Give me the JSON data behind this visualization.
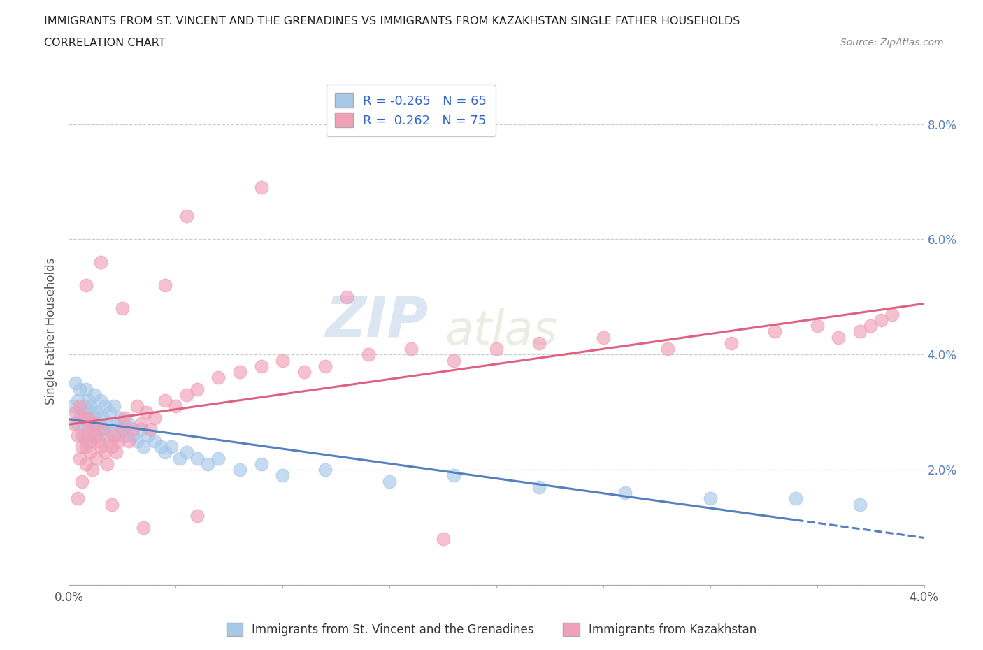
{
  "title_line1": "IMMIGRANTS FROM ST. VINCENT AND THE GRENADINES VS IMMIGRANTS FROM KAZAKHSTAN SINGLE FATHER HOUSEHOLDS",
  "title_line2": "CORRELATION CHART",
  "source_text": "Source: ZipAtlas.com",
  "ylabel": "Single Father Households",
  "xlim": [
    0.0,
    0.04
  ],
  "ylim": [
    0.0,
    0.088
  ],
  "xticks": [
    0.0,
    0.005,
    0.01,
    0.015,
    0.02,
    0.025,
    0.03,
    0.035,
    0.04
  ],
  "xticklabels_show": [
    "0.0%",
    "",
    "",
    "",
    "",
    "",
    "",
    "",
    "4.0%"
  ],
  "yticks": [
    0.0,
    0.02,
    0.04,
    0.06,
    0.08
  ],
  "yticklabels_right": [
    "",
    "2.0%",
    "4.0%",
    "6.0%",
    "8.0%"
  ],
  "watermark_zip": "ZIP",
  "watermark_atlas": "atlas",
  "legend_r1": "R = -0.265",
  "legend_n1": "N = 65",
  "legend_r2": "R =  0.262",
  "legend_n2": "N = 75",
  "color_blue": "#A8C8E8",
  "color_pink": "#F0A0B8",
  "line_color_blue": "#5580C0",
  "line_color_pink": "#E06080",
  "blue_label": "Immigrants from St. Vincent and the Grenadines",
  "pink_label": "Immigrants from Kazakhstan",
  "N_blue": 65,
  "N_pink": 75,
  "R_blue": -0.265,
  "R_pink": 0.262,
  "background_color": "#FFFFFF",
  "grid_color": "#CCCCCC",
  "blue_x_data": [
    0.0002,
    0.0003,
    0.0004,
    0.0004,
    0.0005,
    0.0005,
    0.0006,
    0.0006,
    0.0007,
    0.0007,
    0.0008,
    0.0008,
    0.0008,
    0.0009,
    0.0009,
    0.001,
    0.001,
    0.0011,
    0.0011,
    0.0012,
    0.0012,
    0.0013,
    0.0013,
    0.0014,
    0.0015,
    0.0015,
    0.0016,
    0.0017,
    0.0018,
    0.0018,
    0.0019,
    0.002,
    0.0021,
    0.0022,
    0.0023,
    0.0024,
    0.0025,
    0.0026,
    0.0027,
    0.0028,
    0.003,
    0.0032,
    0.0034,
    0.0035,
    0.0037,
    0.004,
    0.0043,
    0.0045,
    0.0048,
    0.0052,
    0.0055,
    0.006,
    0.0065,
    0.007,
    0.008,
    0.009,
    0.01,
    0.012,
    0.015,
    0.018,
    0.022,
    0.026,
    0.03,
    0.034,
    0.037
  ],
  "blue_y_data": [
    0.031,
    0.035,
    0.028,
    0.032,
    0.029,
    0.034,
    0.03,
    0.026,
    0.031,
    0.028,
    0.034,
    0.03,
    0.025,
    0.029,
    0.032,
    0.028,
    0.031,
    0.027,
    0.03,
    0.029,
    0.033,
    0.026,
    0.03,
    0.028,
    0.032,
    0.027,
    0.029,
    0.031,
    0.028,
    0.026,
    0.03,
    0.027,
    0.031,
    0.028,
    0.026,
    0.029,
    0.027,
    0.028,
    0.026,
    0.028,
    0.026,
    0.025,
    0.027,
    0.024,
    0.026,
    0.025,
    0.024,
    0.023,
    0.024,
    0.022,
    0.023,
    0.022,
    0.021,
    0.022,
    0.02,
    0.021,
    0.019,
    0.02,
    0.018,
    0.019,
    0.017,
    0.016,
    0.015,
    0.015,
    0.014
  ],
  "pink_x_data": [
    0.0002,
    0.0003,
    0.0004,
    0.0004,
    0.0005,
    0.0005,
    0.0006,
    0.0006,
    0.0007,
    0.0007,
    0.0008,
    0.0008,
    0.0009,
    0.0009,
    0.001,
    0.001,
    0.0011,
    0.0012,
    0.0012,
    0.0013,
    0.0014,
    0.0015,
    0.0016,
    0.0017,
    0.0018,
    0.0019,
    0.002,
    0.0021,
    0.0022,
    0.0023,
    0.0025,
    0.0026,
    0.0028,
    0.003,
    0.0032,
    0.0034,
    0.0036,
    0.0038,
    0.004,
    0.0045,
    0.005,
    0.0055,
    0.006,
    0.007,
    0.008,
    0.009,
    0.01,
    0.011,
    0.012,
    0.014,
    0.016,
    0.018,
    0.02,
    0.022,
    0.025,
    0.028,
    0.031,
    0.033,
    0.035,
    0.036,
    0.037,
    0.0375,
    0.038,
    0.0385,
    0.0175,
    0.0055,
    0.009,
    0.013,
    0.0045,
    0.0025,
    0.0015,
    0.0008,
    0.002,
    0.0035,
    0.006
  ],
  "pink_y_data": [
    0.028,
    0.03,
    0.015,
    0.026,
    0.022,
    0.031,
    0.018,
    0.024,
    0.026,
    0.029,
    0.021,
    0.024,
    0.027,
    0.029,
    0.023,
    0.025,
    0.02,
    0.026,
    0.028,
    0.022,
    0.025,
    0.024,
    0.027,
    0.023,
    0.021,
    0.025,
    0.024,
    0.026,
    0.023,
    0.025,
    0.027,
    0.029,
    0.025,
    0.027,
    0.031,
    0.028,
    0.03,
    0.027,
    0.029,
    0.032,
    0.031,
    0.033,
    0.034,
    0.036,
    0.037,
    0.038,
    0.039,
    0.037,
    0.038,
    0.04,
    0.041,
    0.039,
    0.041,
    0.042,
    0.043,
    0.041,
    0.042,
    0.044,
    0.045,
    0.043,
    0.044,
    0.045,
    0.046,
    0.047,
    0.008,
    0.064,
    0.069,
    0.05,
    0.052,
    0.048,
    0.056,
    0.052,
    0.014,
    0.01,
    0.012
  ]
}
